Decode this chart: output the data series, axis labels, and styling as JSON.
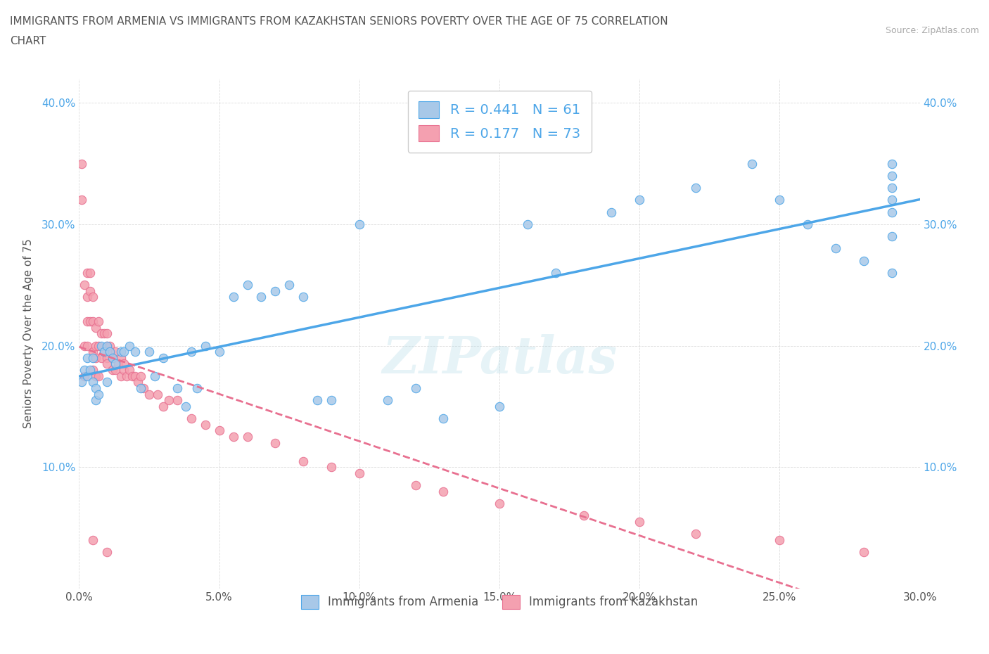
{
  "title_line1": "IMMIGRANTS FROM ARMENIA VS IMMIGRANTS FROM KAZAKHSTAN SENIORS POVERTY OVER THE AGE OF 75 CORRELATION",
  "title_line2": "CHART",
  "source": "Source: ZipAtlas.com",
  "ylabel": "Seniors Poverty Over the Age of 75",
  "xlim": [
    0.0,
    0.3
  ],
  "ylim": [
    0.0,
    0.42
  ],
  "xticks": [
    0.0,
    0.05,
    0.1,
    0.15,
    0.2,
    0.25,
    0.3
  ],
  "xticklabels": [
    "0.0%",
    "5.0%",
    "10.0%",
    "15.0%",
    "20.0%",
    "25.0%",
    "30.0%"
  ],
  "yticks": [
    0.0,
    0.1,
    0.2,
    0.3,
    0.4
  ],
  "yticklabels": [
    "",
    "10.0%",
    "20.0%",
    "30.0%",
    "40.0%"
  ],
  "R_armenia": 0.441,
  "N_armenia": 61,
  "R_kazakhstan": 0.177,
  "N_kazakhstan": 73,
  "color_armenia": "#a8c8e8",
  "color_kazakhstan": "#f4a0b0",
  "line_color_armenia": "#4da6e8",
  "line_color_kazakhstan": "#e87090",
  "watermark": "ZIPatlas",
  "armenia_x": [
    0.001,
    0.002,
    0.003,
    0.003,
    0.004,
    0.005,
    0.005,
    0.006,
    0.006,
    0.007,
    0.008,
    0.009,
    0.01,
    0.01,
    0.011,
    0.012,
    0.013,
    0.015,
    0.016,
    0.018,
    0.02,
    0.022,
    0.025,
    0.027,
    0.03,
    0.035,
    0.038,
    0.04,
    0.042,
    0.045,
    0.05,
    0.055,
    0.06,
    0.065,
    0.07,
    0.075,
    0.08,
    0.085,
    0.09,
    0.1,
    0.11,
    0.12,
    0.13,
    0.15,
    0.16,
    0.17,
    0.19,
    0.2,
    0.22,
    0.24,
    0.25,
    0.26,
    0.27,
    0.28,
    0.29,
    0.29,
    0.29,
    0.29,
    0.29,
    0.29,
    0.29
  ],
  "armenia_y": [
    0.17,
    0.18,
    0.19,
    0.175,
    0.18,
    0.17,
    0.19,
    0.155,
    0.165,
    0.16,
    0.2,
    0.195,
    0.17,
    0.2,
    0.195,
    0.19,
    0.185,
    0.195,
    0.195,
    0.2,
    0.195,
    0.165,
    0.195,
    0.175,
    0.19,
    0.165,
    0.15,
    0.195,
    0.165,
    0.2,
    0.195,
    0.24,
    0.25,
    0.24,
    0.245,
    0.25,
    0.24,
    0.155,
    0.155,
    0.3,
    0.155,
    0.165,
    0.14,
    0.15,
    0.3,
    0.26,
    0.31,
    0.32,
    0.33,
    0.35,
    0.32,
    0.3,
    0.28,
    0.27,
    0.32,
    0.34,
    0.29,
    0.26,
    0.31,
    0.33,
    0.35
  ],
  "kazakhstan_x": [
    0.001,
    0.001,
    0.002,
    0.002,
    0.002,
    0.003,
    0.003,
    0.003,
    0.003,
    0.004,
    0.004,
    0.004,
    0.005,
    0.005,
    0.005,
    0.005,
    0.006,
    0.006,
    0.006,
    0.006,
    0.007,
    0.007,
    0.007,
    0.008,
    0.008,
    0.009,
    0.009,
    0.01,
    0.01,
    0.01,
    0.01,
    0.011,
    0.011,
    0.012,
    0.012,
    0.013,
    0.013,
    0.014,
    0.015,
    0.015,
    0.016,
    0.016,
    0.017,
    0.018,
    0.019,
    0.02,
    0.021,
    0.022,
    0.023,
    0.025,
    0.028,
    0.03,
    0.032,
    0.035,
    0.04,
    0.045,
    0.05,
    0.055,
    0.06,
    0.07,
    0.08,
    0.09,
    0.1,
    0.12,
    0.13,
    0.15,
    0.18,
    0.2,
    0.22,
    0.25,
    0.28,
    0.01,
    0.005
  ],
  "kazakhstan_y": [
    0.35,
    0.32,
    0.25,
    0.2,
    0.175,
    0.26,
    0.24,
    0.22,
    0.2,
    0.26,
    0.245,
    0.22,
    0.24,
    0.22,
    0.195,
    0.18,
    0.215,
    0.2,
    0.19,
    0.175,
    0.22,
    0.2,
    0.175,
    0.21,
    0.19,
    0.21,
    0.195,
    0.21,
    0.2,
    0.19,
    0.185,
    0.2,
    0.195,
    0.19,
    0.18,
    0.195,
    0.18,
    0.185,
    0.19,
    0.175,
    0.185,
    0.18,
    0.175,
    0.18,
    0.175,
    0.175,
    0.17,
    0.175,
    0.165,
    0.16,
    0.16,
    0.15,
    0.155,
    0.155,
    0.14,
    0.135,
    0.13,
    0.125,
    0.125,
    0.12,
    0.105,
    0.1,
    0.095,
    0.085,
    0.08,
    0.07,
    0.06,
    0.055,
    0.045,
    0.04,
    0.03,
    0.03,
    0.04
  ]
}
